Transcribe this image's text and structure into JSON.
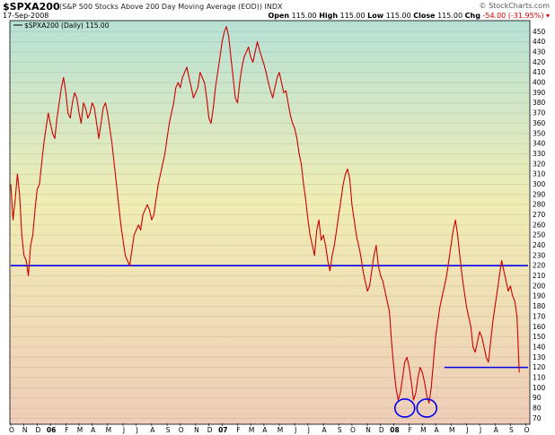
{
  "header": {
    "symbol": "$SPXA200",
    "description": "(S&P 500 Stocks Above 200 Day Moving Average (EOD))",
    "exchange": "INDX",
    "date": "17-Sep-2008",
    "source": "© StockCharts.com",
    "open_label": "Open",
    "open_value": "115.00",
    "high_label": "High",
    "high_value": "115.00",
    "low_label": "Low",
    "low_value": "115.00",
    "close_label": "Close",
    "close_value": "115.00",
    "chg_label": "Chg",
    "chg_value": "-54.00 (-31.95%)"
  },
  "legend": {
    "label": "$SPXA200 (Daily) 115.00"
  },
  "colors": {
    "price_line": "#cc0000",
    "price_line_dark": "#000000",
    "hline": "#0000ee",
    "circle": "#0000ee",
    "bg_top": "#b7e1d6",
    "bg_mid": "#f0edb4",
    "bg_bottom": "#efcdb8"
  },
  "chart_data": {
    "type": "line",
    "title": "$SPXA200",
    "ylim": [
      65,
      460
    ],
    "y_ticks": [
      70,
      80,
      90,
      100,
      110,
      120,
      130,
      140,
      150,
      160,
      170,
      180,
      190,
      200,
      210,
      220,
      230,
      240,
      250,
      260,
      270,
      280,
      290,
      300,
      310,
      320,
      330,
      340,
      350,
      360,
      370,
      380,
      390,
      400,
      410,
      420,
      430,
      440,
      450
    ],
    "x_ticks": [
      {
        "label": "O",
        "i": 0
      },
      {
        "label": "N",
        "i": 6
      },
      {
        "label": "D",
        "i": 12
      },
      {
        "label": "06",
        "i": 18,
        "year": true
      },
      {
        "label": "F",
        "i": 25
      },
      {
        "label": "M",
        "i": 31
      },
      {
        "label": "A",
        "i": 37
      },
      {
        "label": "M",
        "i": 44
      },
      {
        "label": "J",
        "i": 51
      },
      {
        "label": "J",
        "i": 57
      },
      {
        "label": "A",
        "i": 64
      },
      {
        "label": "S",
        "i": 71
      },
      {
        "label": "O",
        "i": 77
      },
      {
        "label": "N",
        "i": 84
      },
      {
        "label": "D",
        "i": 90
      },
      {
        "label": "07",
        "i": 96,
        "year": true
      },
      {
        "label": "F",
        "i": 103
      },
      {
        "label": "M",
        "i": 109
      },
      {
        "label": "A",
        "i": 115
      },
      {
        "label": "M",
        "i": 122
      },
      {
        "label": "J",
        "i": 129
      },
      {
        "label": "J",
        "i": 135
      },
      {
        "label": "A",
        "i": 142
      },
      {
        "label": "S",
        "i": 149
      },
      {
        "label": "O",
        "i": 155
      },
      {
        "label": "N",
        "i": 162
      },
      {
        "label": "D",
        "i": 168
      },
      {
        "label": "08",
        "i": 174,
        "year": true
      },
      {
        "label": "F",
        "i": 181
      },
      {
        "label": "M",
        "i": 187
      },
      {
        "label": "A",
        "i": 193
      },
      {
        "label": "M",
        "i": 200
      },
      {
        "label": "J",
        "i": 207
      },
      {
        "label": "J",
        "i": 213
      },
      {
        "label": "A",
        "i": 220
      },
      {
        "label": "S",
        "i": 227
      },
      {
        "label": "O",
        "i": 234
      }
    ],
    "x_count": 236,
    "series": [
      {
        "values": [
          300,
          265,
          285,
          310,
          290,
          250,
          230,
          225,
          210,
          240,
          250,
          275,
          295,
          300,
          320,
          340,
          355,
          370,
          360,
          350,
          345,
          365,
          380,
          395,
          405,
          390,
          370,
          365,
          380,
          390,
          385,
          370,
          360,
          380,
          375,
          365,
          370,
          380,
          375,
          360,
          345,
          360,
          375,
          380,
          370,
          355,
          340,
          320,
          300,
          280,
          260,
          245,
          230,
          225,
          220,
          235,
          250,
          255,
          260,
          255,
          270,
          275,
          280,
          275,
          265,
          270,
          285,
          300,
          310,
          320,
          330,
          345,
          360,
          370,
          380,
          395,
          400,
          395,
          405,
          410,
          415,
          405,
          395,
          385,
          390,
          395,
          410,
          405,
          400,
          385,
          365,
          360,
          375,
          395,
          410,
          425,
          440,
          450,
          455,
          445,
          425,
          405,
          385,
          380,
          400,
          415,
          425,
          430,
          435,
          425,
          420,
          430,
          440,
          432,
          425,
          418,
          410,
          400,
          392,
          385,
          395,
          405,
          410,
          400,
          390,
          392,
          380,
          368,
          360,
          355,
          345,
          330,
          320,
          300,
          285,
          265,
          250,
          240,
          230,
          255,
          265,
          245,
          250,
          240,
          225,
          215,
          230,
          240,
          255,
          270,
          285,
          300,
          310,
          315,
          305,
          280,
          265,
          250,
          240,
          230,
          215,
          205,
          195,
          200,
          215,
          230,
          240,
          220,
          210,
          205,
          195,
          185,
          175,
          145,
          120,
          100,
          88,
          95,
          110,
          125,
          130,
          120,
          105,
          88,
          95,
          110,
          120,
          115,
          105,
          92,
          85,
          100,
          125,
          150,
          165,
          180,
          190,
          200,
          210,
          225,
          240,
          255,
          265,
          250,
          230,
          210,
          195,
          180,
          170,
          160,
          140,
          135,
          145,
          155,
          150,
          140,
          130,
          125,
          145,
          165,
          180,
          195,
          210,
          225,
          215,
          205,
          195,
          200,
          190,
          185,
          170,
          115
        ]
      }
    ],
    "reference_lines": [
      {
        "y": 220,
        "x_start": 0,
        "x_end": 235
      },
      {
        "y": 120,
        "x_start": 197,
        "x_end": 235
      }
    ],
    "annotations": [
      {
        "type": "circle",
        "x_index": 179,
        "y": 80
      },
      {
        "type": "circle",
        "x_index": 189,
        "y": 80
      }
    ]
  }
}
